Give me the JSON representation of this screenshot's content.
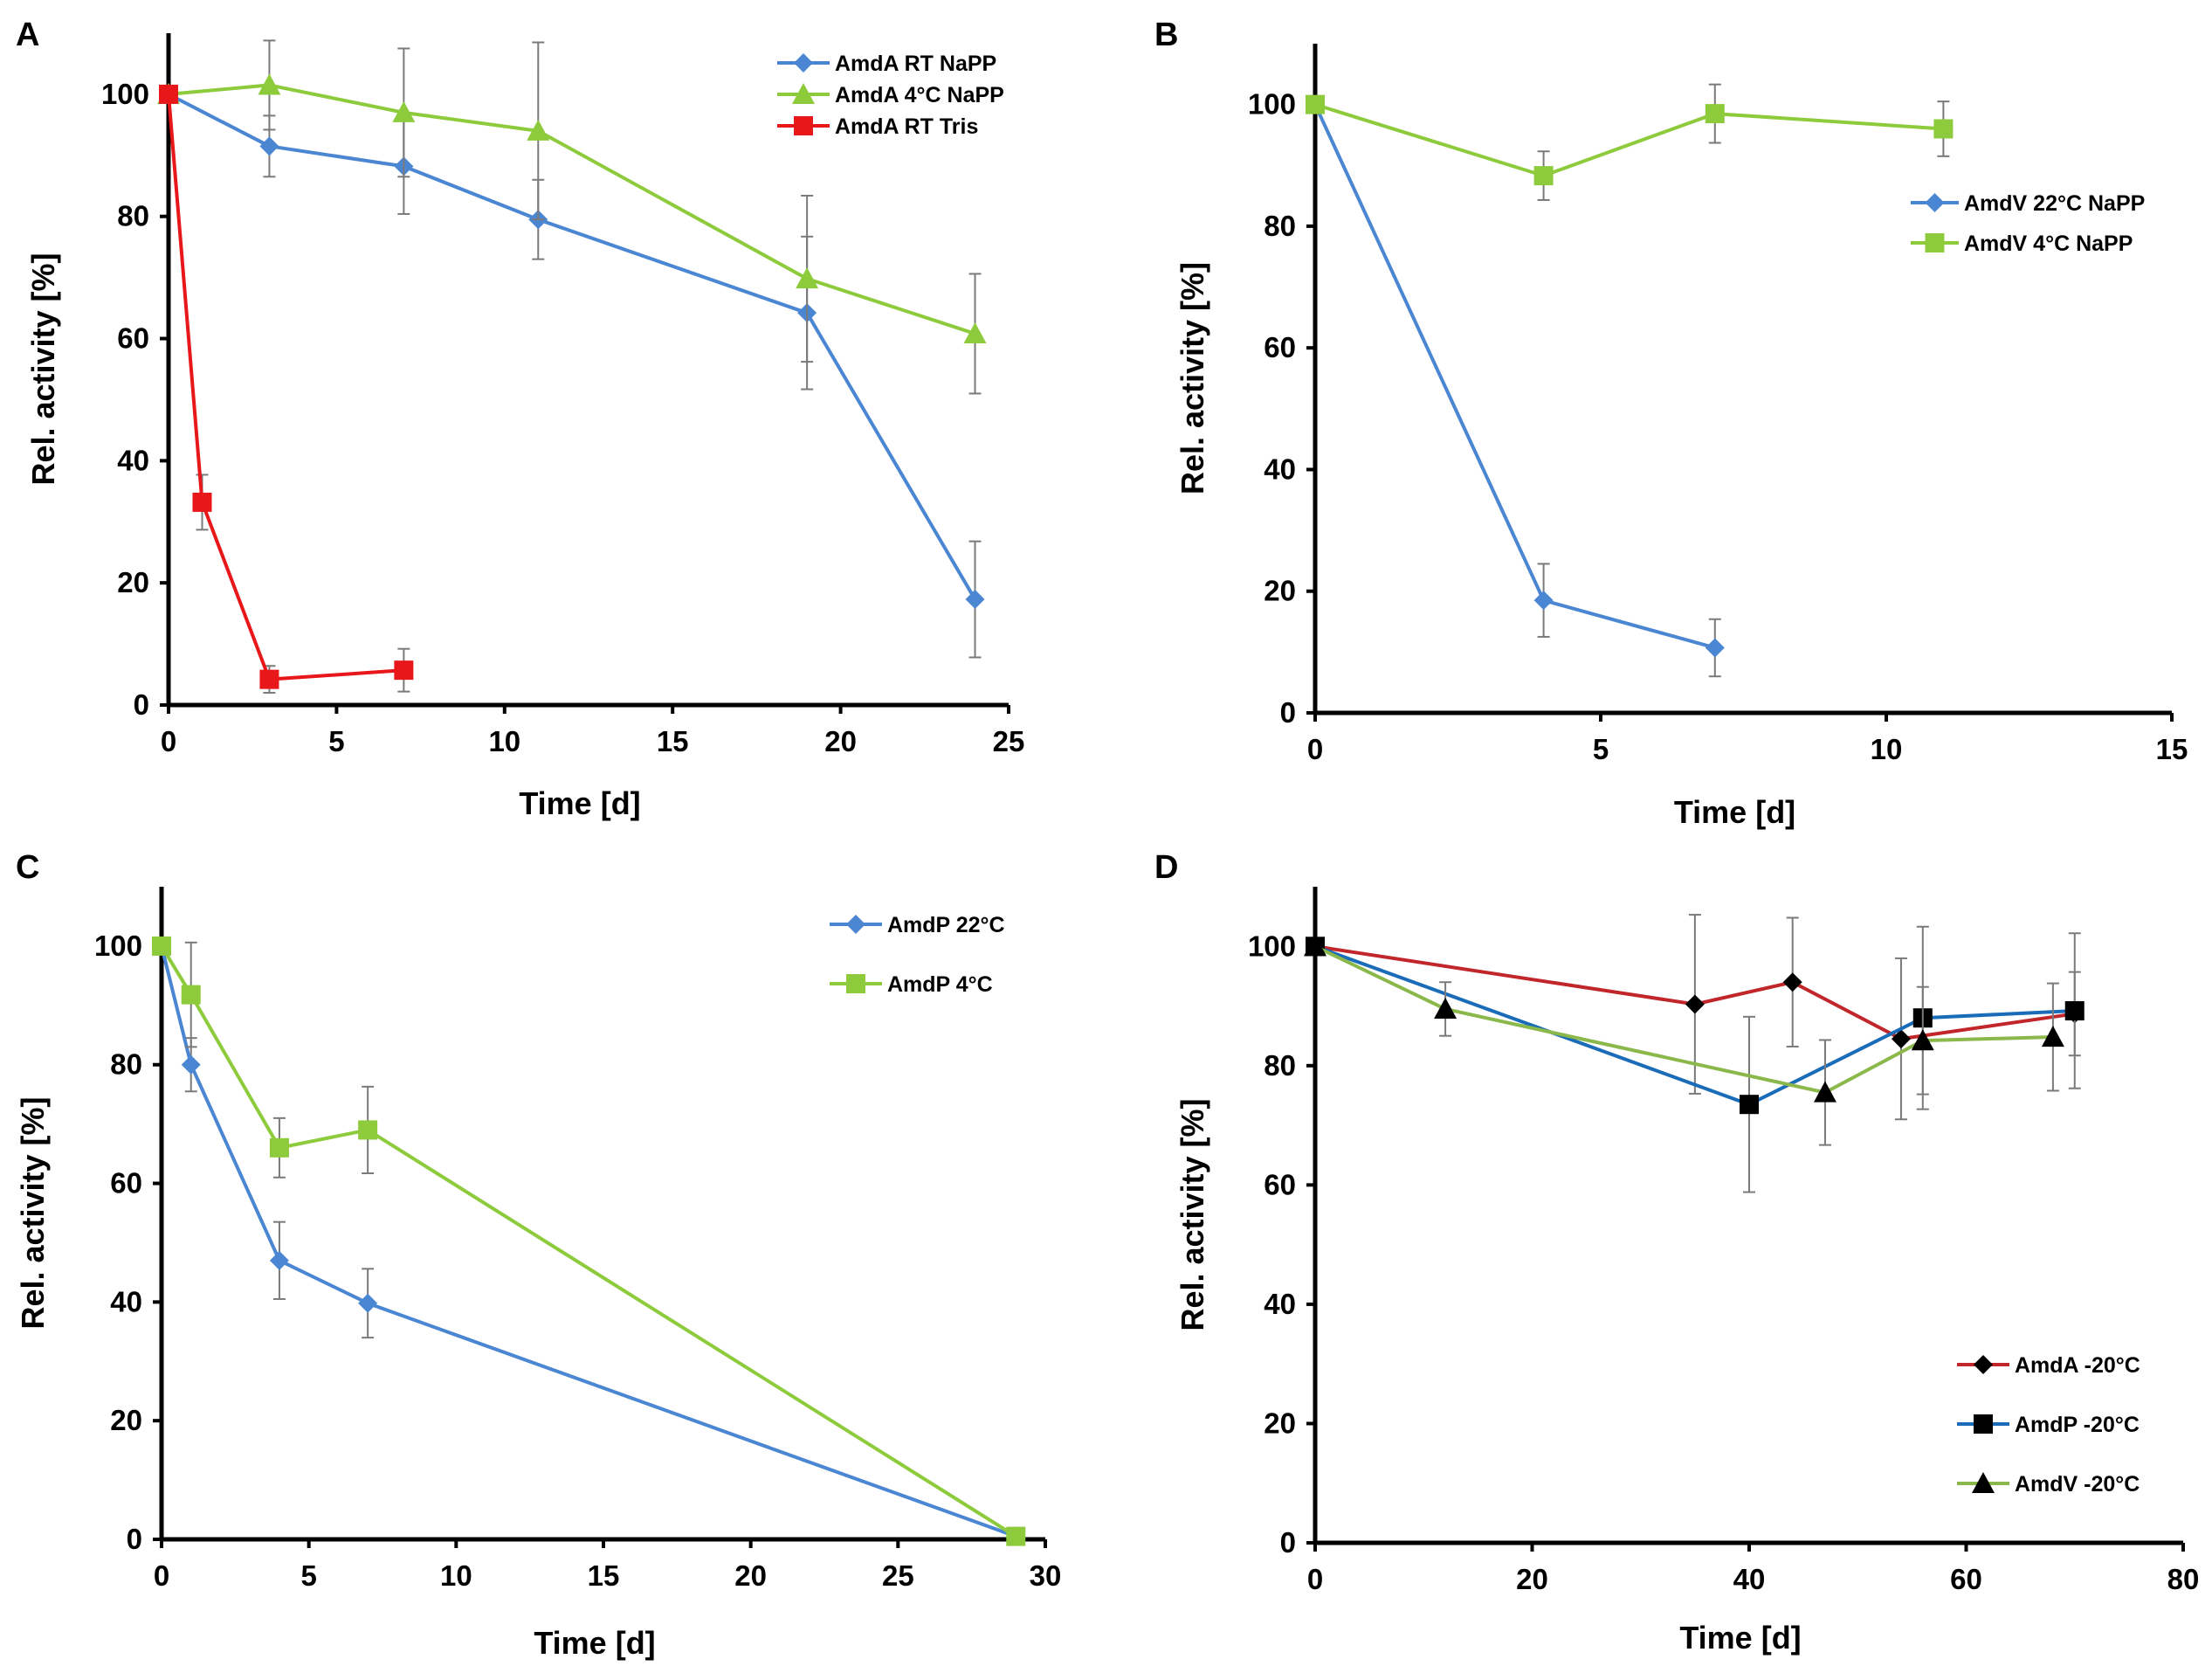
{
  "chart_data": [
    {
      "panel": "A",
      "type": "line",
      "title": "",
      "xlabel": "Time [d]",
      "ylabel": "Rel. activity [%]",
      "xlim": [
        0,
        25
      ],
      "ylim": [
        0,
        110
      ],
      "xticks": [
        0,
        5,
        10,
        15,
        20,
        25
      ],
      "yticks": [
        0,
        20,
        40,
        60,
        80,
        100
      ],
      "grid": false,
      "legend_position": "top-right",
      "series": [
        {
          "name": "AmdA RT NaPP",
          "color": "#4a86d2",
          "marker": "diamond",
          "x": [
            0,
            3,
            7,
            11,
            19,
            24
          ],
          "y": [
            100,
            91.5,
            88.2,
            79.5,
            64.2,
            17.3
          ],
          "err": [
            0,
            5,
            7.8,
            6.5,
            12.5,
            9.5
          ]
        },
        {
          "name": "AmdA 4°C NaPP",
          "color": "#8dcb3c",
          "marker": "triangle",
          "x": [
            0,
            3,
            7,
            11,
            19,
            24
          ],
          "y": [
            100,
            101.5,
            97,
            94,
            69.8,
            60.8
          ],
          "err": [
            0,
            7.3,
            10.5,
            14.5,
            13.6,
            9.8
          ]
        },
        {
          "name": "AmdA RT Tris",
          "color": "#e8171a",
          "marker": "square",
          "x": [
            0,
            1,
            3,
            7
          ],
          "y": [
            100,
            33.2,
            4.2,
            5.7
          ],
          "err": [
            0,
            4.5,
            2.2,
            3.5
          ]
        }
      ]
    },
    {
      "panel": "B",
      "type": "line",
      "title": "",
      "xlabel": "Time [d]",
      "ylabel": "Rel. activity [%]",
      "xlim": [
        0,
        15
      ],
      "ylim": [
        0,
        110
      ],
      "xticks": [
        0,
        5,
        10,
        15
      ],
      "yticks": [
        0,
        20,
        40,
        60,
        80,
        100
      ],
      "grid": false,
      "legend_position": "upper-right",
      "series": [
        {
          "name": "AmdV 22°C NaPP",
          "color": "#4a86d2",
          "marker": "diamond",
          "x": [
            0,
            4,
            7
          ],
          "y": [
            100,
            18.5,
            10.7
          ],
          "err": [
            0,
            6,
            4.7
          ]
        },
        {
          "name": "AmdV 4°C NaPP",
          "color": "#8dcb3c",
          "marker": "square",
          "x": [
            0,
            4,
            7,
            11
          ],
          "y": [
            100,
            88.3,
            98.5,
            96
          ],
          "err": [
            0,
            4,
            4.8,
            4.5
          ]
        }
      ]
    },
    {
      "panel": "C",
      "type": "line",
      "title": "",
      "xlabel": "Time [d]",
      "ylabel": "Rel. activity [%]",
      "xlim": [
        0,
        30
      ],
      "ylim": [
        0,
        110
      ],
      "xticks": [
        0,
        5,
        10,
        15,
        20,
        25,
        30
      ],
      "yticks": [
        0,
        20,
        40,
        60,
        80,
        100
      ],
      "grid": false,
      "legend_position": "top-right",
      "series": [
        {
          "name": "AmdP 22°C",
          "color": "#4a86d2",
          "marker": "diamond",
          "x": [
            0,
            1,
            4,
            7,
            29
          ],
          "y": [
            100,
            80,
            47,
            39.8,
            0.5
          ],
          "err": [
            0,
            4.5,
            6.5,
            5.8,
            0
          ]
        },
        {
          "name": "AmdP 4°C",
          "color": "#8dcb3c",
          "marker": "square",
          "x": [
            0,
            1,
            4,
            7,
            29
          ],
          "y": [
            100,
            91.8,
            66,
            69,
            0.5
          ],
          "err": [
            0,
            8.8,
            5,
            7.3,
            0
          ]
        }
      ]
    },
    {
      "panel": "D",
      "type": "line",
      "title": "",
      "xlabel": "Time [d]",
      "ylabel": "Rel. activity [%]",
      "xlim": [
        0,
        80
      ],
      "ylim": [
        0,
        110
      ],
      "xticks": [
        0,
        20,
        40,
        60,
        80
      ],
      "yticks": [
        0,
        20,
        40,
        60,
        80,
        100
      ],
      "grid": false,
      "legend_position": "bottom-right",
      "series": [
        {
          "name": "AmdA -20°C",
          "color": "#c0262a",
          "marker": "diamond",
          "x": [
            0,
            35,
            44,
            54,
            70
          ],
          "y": [
            100,
            90.3,
            94,
            84.5,
            88.7
          ],
          "err": [
            0,
            15,
            10.8,
            13.5,
            7
          ]
        },
        {
          "name": "AmdP -20°C",
          "color": "#1b6cb8",
          "marker": "square",
          "x": [
            0,
            40,
            56,
            70
          ],
          "y": [
            100,
            73.5,
            88,
            89.2
          ],
          "err": [
            0,
            14.7,
            15.3,
            13
          ]
        },
        {
          "name": "AmdV -20°C",
          "color": "#8ab84a",
          "marker": "triangle",
          "x": [
            0,
            12,
            47,
            56,
            68
          ],
          "y": [
            100,
            89.5,
            75.5,
            84.2,
            84.8
          ],
          "err": [
            0,
            4.5,
            8.8,
            9,
            9
          ]
        }
      ]
    }
  ]
}
